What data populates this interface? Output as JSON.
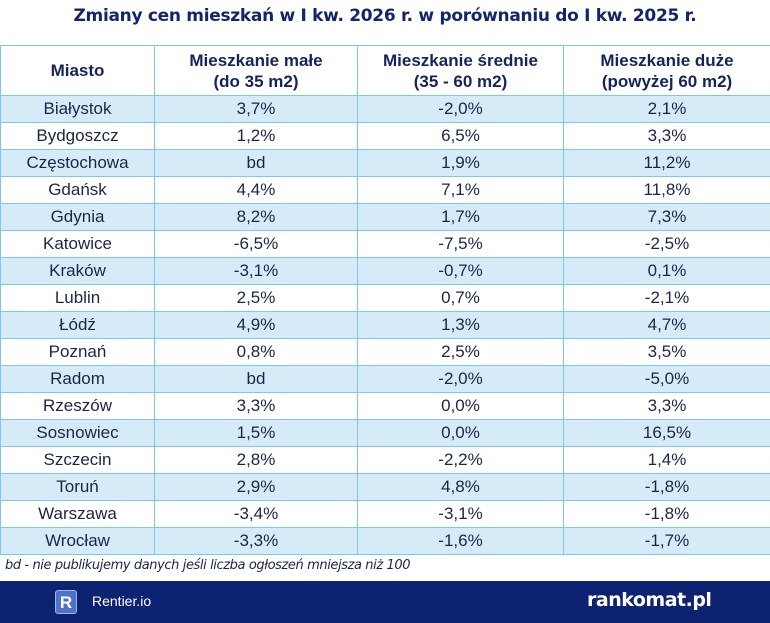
{
  "title": "Zmiany cen mieszkań w I kw. 2026 r. w porównaniu do I kw. 2025 r.",
  "table": {
    "headers": [
      "Miasto",
      "Mieszkanie małe\n(do 35 m2)",
      "Mieszkanie średnie\n(35 - 60 m2)",
      "Mieszkanie duże\n(powyżej 60 m2)"
    ],
    "rows": [
      [
        "Białystok",
        "3,7%",
        "-2,0%",
        "2,1%"
      ],
      [
        "Bydgoszcz",
        "1,2%",
        "6,5%",
        "3,3%"
      ],
      [
        "Częstochowa",
        "bd",
        "1,9%",
        "11,2%"
      ],
      [
        "Gdańsk",
        "4,4%",
        "7,1%",
        "11,8%"
      ],
      [
        "Gdynia",
        "8,2%",
        "1,7%",
        "7,3%"
      ],
      [
        "Katowice",
        "-6,5%",
        "-7,5%",
        "-2,5%"
      ],
      [
        "Kraków",
        "-3,1%",
        "-0,7%",
        "0,1%"
      ],
      [
        "Lublin",
        "2,5%",
        "0,7%",
        "-2,1%"
      ],
      [
        "Łódź",
        "4,9%",
        "1,3%",
        "4,7%"
      ],
      [
        "Poznań",
        "0,8%",
        "2,5%",
        "3,5%"
      ],
      [
        "Radom",
        "bd",
        "-2,0%",
        "-5,0%"
      ],
      [
        "Rzeszów",
        "3,3%",
        "0,0%",
        "3,3%"
      ],
      [
        "Sosnowiec",
        "1,5%",
        "0,0%",
        "16,5%"
      ],
      [
        "Szczecin",
        "2,8%",
        "-2,2%",
        "1,4%"
      ],
      [
        "Toruń",
        "2,9%",
        "4,8%",
        "-1,8%"
      ],
      [
        "Warszawa",
        "-3,4%",
        "-3,1%",
        "-1,8%"
      ],
      [
        "Wrocław",
        "-3,3%",
        "-1,6%",
        "-1,7%"
      ]
    ]
  },
  "note": "bd - nie publikujemy danych jeśli liczba ogłoszeń mniejsza niż 100",
  "footer": {
    "left_logo_letter": "R",
    "left_brand": "Rentier.io",
    "right_brand": "rankomat.pl"
  },
  "colors": {
    "title": "#13256b",
    "row_alt": "#d5ecf8",
    "border": "#7ec6ea",
    "footer_bg": "#0e2272"
  }
}
